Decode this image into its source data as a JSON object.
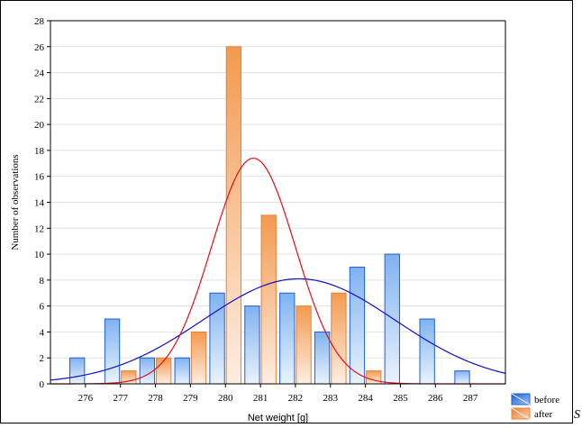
{
  "chart_data": {
    "type": "bar",
    "title": "",
    "xlabel": "Net weight [g]",
    "ylabel": "Number of observations",
    "categories": [
      "276",
      "277",
      "278",
      "279",
      "280",
      "281",
      "282",
      "283",
      "284",
      "285",
      "286",
      "287"
    ],
    "xlim": [
      275,
      288
    ],
    "ylim": [
      0,
      28
    ],
    "yticks": [
      0,
      2,
      4,
      6,
      8,
      10,
      12,
      14,
      16,
      18,
      20,
      22,
      24,
      26,
      28
    ],
    "grid": true,
    "legend_position": "bottom-right outside",
    "series": [
      {
        "name": "before",
        "color": "#1f5fd6",
        "values": [
          2,
          5,
          2,
          2,
          7,
          6,
          7,
          4,
          9,
          10,
          5,
          1
        ],
        "fit": {
          "type": "normal",
          "mean": 282.1,
          "sd": 2.75,
          "peak": 8.1,
          "color": "#1010cc"
        }
      },
      {
        "name": "after",
        "color": "#e8823a",
        "values": [
          0,
          1,
          2,
          4,
          26,
          13,
          6,
          7,
          1,
          0,
          0,
          0
        ],
        "fit": {
          "type": "normal",
          "mean": 280.8,
          "sd": 1.2,
          "peak": 17.4,
          "color": "#e0101a"
        }
      }
    ]
  },
  "corner_text": "S"
}
